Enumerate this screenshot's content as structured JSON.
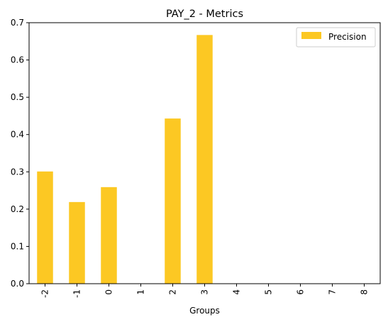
{
  "chart_data": {
    "type": "bar",
    "title": "PAY_2 - Metrics",
    "xlabel": "Groups",
    "ylabel": "",
    "categories": [
      "-2",
      "-1",
      "0",
      "1",
      "2",
      "3",
      "4",
      "5",
      "6",
      "7",
      "8"
    ],
    "series": [
      {
        "name": "Precision",
        "color": "#fcc823",
        "values": [
          0.301,
          0.219,
          0.259,
          0.0,
          0.443,
          0.667,
          0.0,
          0.0,
          0.0,
          0.0,
          0.0
        ]
      }
    ],
    "ylim": [
      0,
      0.7
    ],
    "yticks": [
      "0.0",
      "0.1",
      "0.2",
      "0.3",
      "0.4",
      "0.5",
      "0.6",
      "0.7"
    ],
    "grid": false,
    "legend_position": "top-right"
  }
}
